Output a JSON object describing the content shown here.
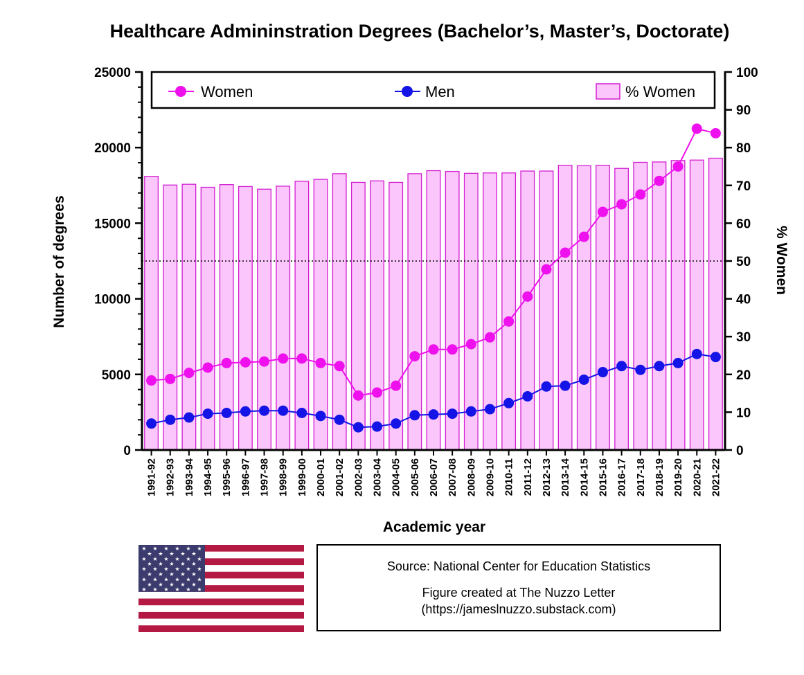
{
  "chart_data": {
    "type": "bar+line",
    "title": "Healthcare Admininstration Degrees (Bachelor’s, Master’s, Doctorate)",
    "xlabel": "Academic year",
    "ylabel": "Number of degrees",
    "ylabel_right": "% Women",
    "ylim": [
      0,
      25000
    ],
    "ylim_right": [
      0,
      100
    ],
    "yticks": [
      "0",
      "5000",
      "10000",
      "15000",
      "20000",
      "25000"
    ],
    "yticks_right": [
      "0",
      "10",
      "20",
      "30",
      "40",
      "50",
      "60",
      "70",
      "80",
      "90",
      "100"
    ],
    "reference_line_right": 50,
    "legend_position": "top",
    "categories": [
      "1991-92",
      "1992-93",
      "1993-94",
      "1994-95",
      "1995-96",
      "1996-97",
      "1997-98",
      "1998-99",
      "1999-00",
      "2000-01",
      "2001-02",
      "2002-03",
      "2003-04",
      "2004-05",
      "2005-06",
      "2006-07",
      "2007-08",
      "2008-09",
      "2009-10",
      "2010-11",
      "2011-12",
      "2012-13",
      "2013-14",
      "2014-15",
      "2015-16",
      "2016-17",
      "2017-18",
      "2018-19",
      "2019-20",
      "2020-21",
      "2021-22"
    ],
    "series": [
      {
        "name": "Women",
        "kind": "line",
        "axis": "left",
        "color": "#ee11ee",
        "values": [
          4600,
          4700,
          5100,
          5450,
          5750,
          5800,
          5850,
          6050,
          6050,
          5750,
          5550,
          3600,
          3800,
          4250,
          6200,
          6650,
          6650,
          7000,
          7450,
          8500,
          10150,
          11950,
          13050,
          14100,
          15750,
          16250,
          16900,
          17800,
          18750,
          21250,
          20950
        ]
      },
      {
        "name": "Men",
        "kind": "line",
        "axis": "left",
        "color": "#1414e6",
        "values": [
          1750,
          2000,
          2150,
          2400,
          2450,
          2550,
          2600,
          2600,
          2450,
          2250,
          2000,
          1500,
          1550,
          1750,
          2300,
          2350,
          2400,
          2550,
          2700,
          3100,
          3550,
          4200,
          4250,
          4650,
          5150,
          5550,
          5300,
          5550,
          5750,
          6350,
          6150
        ]
      },
      {
        "name": "% Women",
        "kind": "bar",
        "axis": "right",
        "color": "#fbc6fb",
        "edge_color": "#d21dd2",
        "values": [
          72.4,
          70.1,
          70.3,
          69.5,
          70.2,
          69.7,
          69.0,
          69.8,
          71.1,
          71.6,
          73.1,
          70.8,
          71.2,
          70.8,
          73.1,
          73.9,
          73.7,
          73.2,
          73.3,
          73.3,
          73.8,
          73.8,
          75.3,
          75.2,
          75.3,
          74.5,
          76.1,
          76.2,
          76.6,
          76.7,
          77.2
        ]
      }
    ]
  },
  "source": {
    "line1": "Source: National Center for Education Statistics",
    "line2": "Figure created at The Nuzzo Letter",
    "line3": "(https://jameslnuzzo.substack.com)"
  },
  "flag": {
    "name": "us-flag-icon",
    "stripe_red": "#b31942",
    "canton_blue": "#3c3b6e"
  }
}
